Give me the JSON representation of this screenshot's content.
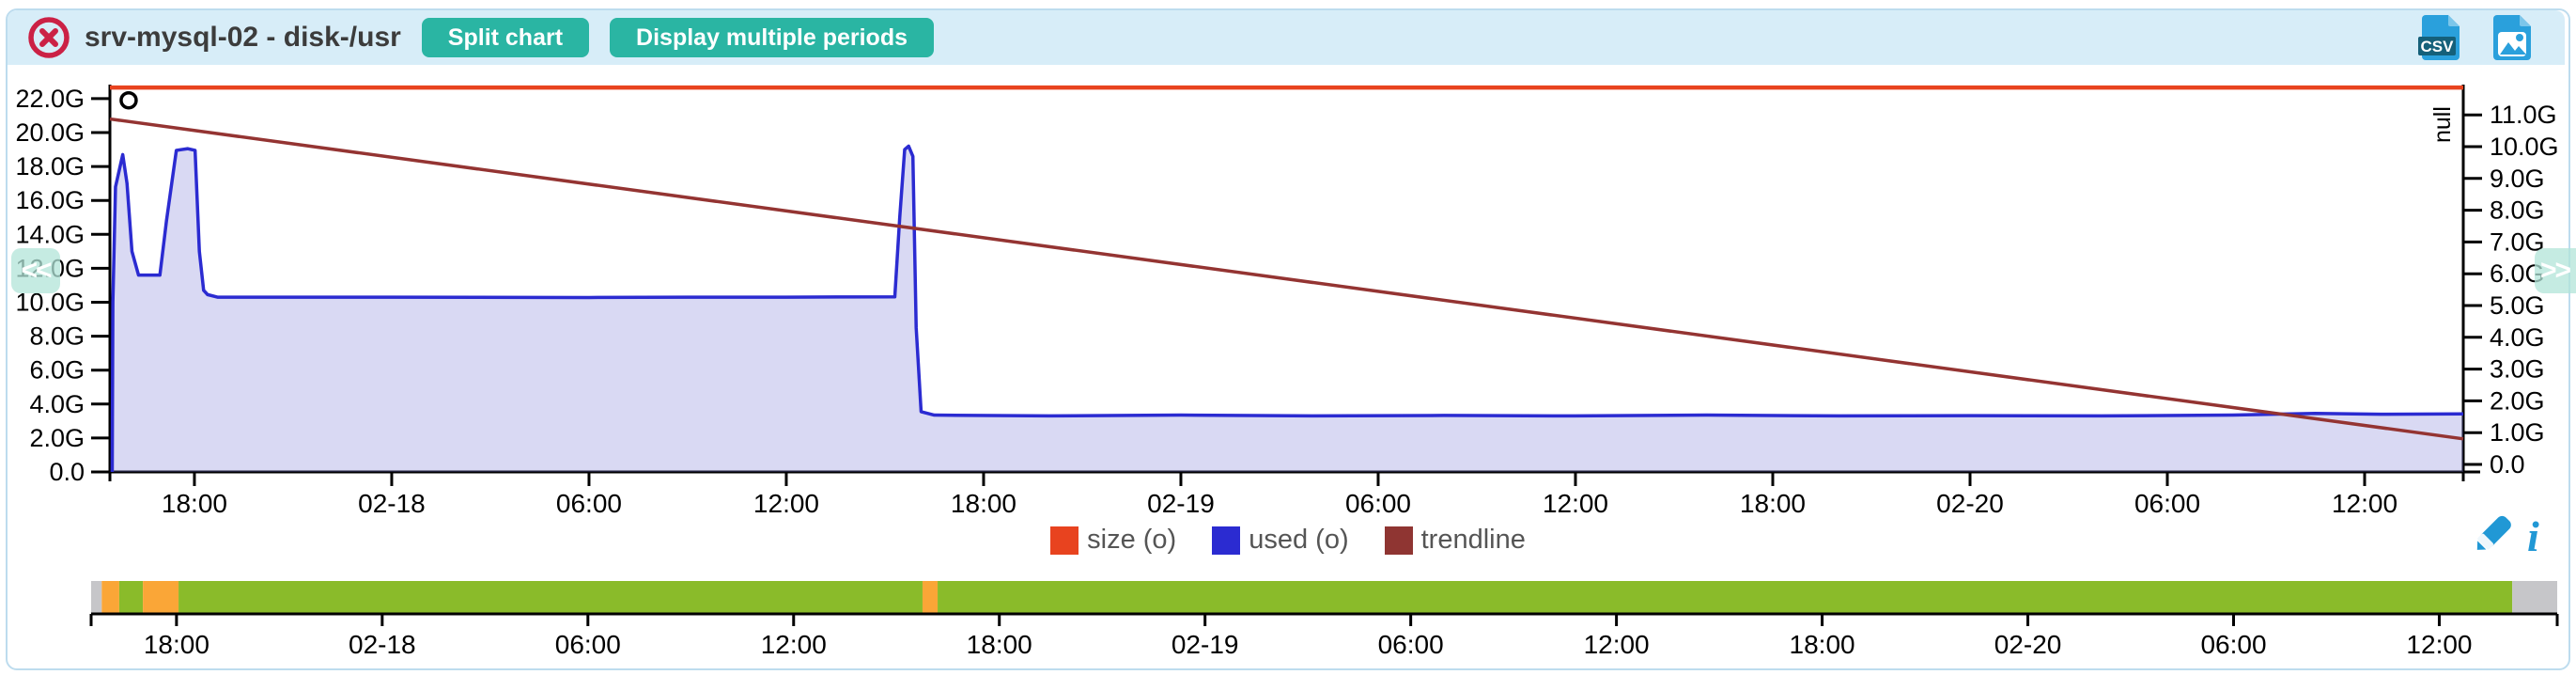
{
  "header": {
    "title": "srv-mysql-02 - disk-/usr",
    "split_button": "Split chart",
    "multi_periods_button": "Display multiple periods",
    "csv_label": "CSV"
  },
  "nav": {
    "prev": "<<",
    "next": ">>"
  },
  "colors": {
    "header_bg": "#d7edf8",
    "panel_border": "#bddcee",
    "accent_teal": "#2ab5a3",
    "close_red": "#cb2145",
    "icon_blue": "#2198d5",
    "axis_black": "#000000"
  },
  "chart_data": {
    "type": "area",
    "title": "srv-mysql-02 - disk-/usr",
    "x_axis": {
      "unit": "hours since 02-17 00:00",
      "range": [
        15.43,
        87
      ],
      "ticks": [
        {
          "t": 18,
          "label": "18:00"
        },
        {
          "t": 24,
          "label": "02-18"
        },
        {
          "t": 30,
          "label": "06:00"
        },
        {
          "t": 36,
          "label": "12:00"
        },
        {
          "t": 42,
          "label": "18:00"
        },
        {
          "t": 48,
          "label": "02-19"
        },
        {
          "t": 54,
          "label": "06:00"
        },
        {
          "t": 60,
          "label": "12:00"
        },
        {
          "t": 66,
          "label": "18:00"
        },
        {
          "t": 72,
          "label": "02-20"
        },
        {
          "t": 78,
          "label": "06:00"
        },
        {
          "t": 84,
          "label": "12:00"
        }
      ]
    },
    "y_left": {
      "tick_values": [
        0,
        2,
        4,
        6,
        8,
        10,
        12,
        14,
        16,
        18,
        20,
        22
      ],
      "tick_labels": [
        "0.0",
        "2.0G",
        "4.0G",
        "6.0G",
        "8.0G",
        "10.0G",
        "12.0G",
        "14.0G",
        "16.0G",
        "18.0G",
        "20.0G",
        "22.0G"
      ],
      "range": [
        0,
        22.9
      ]
    },
    "y_right": {
      "label": "null",
      "tick_values": [
        0,
        1,
        2,
        3,
        4,
        5,
        6,
        7,
        8,
        9,
        10,
        11
      ],
      "tick_labels": [
        "0.0",
        "1.0G",
        "2.0G",
        "3.0G",
        "4.0G",
        "5.0G",
        "6.0G",
        "7.0G",
        "8.0G",
        "9.0G",
        "10.0G",
        "11.0G"
      ],
      "range": [
        0,
        11.9
      ]
    },
    "series": [
      {
        "name": "size (o)",
        "type": "line",
        "color": "#e8431f",
        "width": 4.5,
        "points": [
          [
            15.43,
            22.65
          ],
          [
            87,
            22.65
          ]
        ]
      },
      {
        "name": "used (o)",
        "type": "area",
        "color": "#2b2bd1",
        "fill": "rgba(115,115,212,0.27)",
        "width": 3.5,
        "points": [
          [
            15.5,
            0
          ],
          [
            15.52,
            10
          ],
          [
            15.6,
            16.8
          ],
          [
            15.82,
            18.7
          ],
          [
            15.95,
            17.0
          ],
          [
            16.1,
            13.0
          ],
          [
            16.3,
            11.6
          ],
          [
            16.95,
            11.6
          ],
          [
            17.15,
            14.8
          ],
          [
            17.45,
            18.95
          ],
          [
            17.8,
            19.05
          ],
          [
            18.02,
            18.95
          ],
          [
            18.15,
            13.0
          ],
          [
            18.28,
            10.7
          ],
          [
            18.4,
            10.45
          ],
          [
            18.7,
            10.3
          ],
          [
            24,
            10.3
          ],
          [
            30,
            10.28
          ],
          [
            33,
            10.3
          ],
          [
            36,
            10.3
          ],
          [
            39.3,
            10.32
          ],
          [
            39.45,
            15.0
          ],
          [
            39.6,
            19.0
          ],
          [
            39.72,
            19.2
          ],
          [
            39.85,
            18.6
          ],
          [
            39.95,
            8.5
          ],
          [
            40.1,
            3.55
          ],
          [
            40.5,
            3.35
          ],
          [
            44,
            3.3
          ],
          [
            48,
            3.35
          ],
          [
            52,
            3.3
          ],
          [
            56,
            3.33
          ],
          [
            60,
            3.3
          ],
          [
            64,
            3.35
          ],
          [
            68,
            3.3
          ],
          [
            72,
            3.32
          ],
          [
            76,
            3.3
          ],
          [
            80,
            3.35
          ],
          [
            82.5,
            3.45
          ],
          [
            84.5,
            3.4
          ],
          [
            87,
            3.42
          ]
        ]
      },
      {
        "name": "trendline",
        "type": "line",
        "color": "#943432",
        "width": 3.5,
        "points": [
          [
            15.43,
            20.8
          ],
          [
            87,
            1.95
          ]
        ]
      }
    ],
    "null_marker": {
      "t": 16.0,
      "value_left_scale": 21.9
    }
  },
  "legend": {
    "items": [
      {
        "label": "size (o)",
        "color": "#e8431f"
      },
      {
        "label": "used (o)",
        "color": "#2b2bd1"
      },
      {
        "label": "trendline",
        "color": "#8f3532"
      }
    ]
  },
  "timeline": {
    "range": [
      15.51,
      87.44
    ],
    "status_colors": {
      "green": "#8abb2a",
      "orange": "#faa637",
      "gray": "#c6c6c9"
    },
    "segments": [
      {
        "start": 15.51,
        "end": 15.82,
        "status": "gray"
      },
      {
        "start": 15.82,
        "end": 16.33,
        "status": "orange"
      },
      {
        "start": 16.33,
        "end": 17.02,
        "status": "green"
      },
      {
        "start": 17.02,
        "end": 18.06,
        "status": "orange"
      },
      {
        "start": 18.06,
        "end": 39.76,
        "status": "green"
      },
      {
        "start": 39.76,
        "end": 40.2,
        "status": "orange"
      },
      {
        "start": 40.2,
        "end": 86.13,
        "status": "green"
      },
      {
        "start": 86.13,
        "end": 87.44,
        "status": "gray"
      }
    ],
    "ticks": [
      {
        "t": 18,
        "label": "18:00"
      },
      {
        "t": 24,
        "label": "02-18"
      },
      {
        "t": 30,
        "label": "06:00"
      },
      {
        "t": 36,
        "label": "12:00"
      },
      {
        "t": 42,
        "label": "18:00"
      },
      {
        "t": 48,
        "label": "02-19"
      },
      {
        "t": 54,
        "label": "06:00"
      },
      {
        "t": 60,
        "label": "12:00"
      },
      {
        "t": 66,
        "label": "18:00"
      },
      {
        "t": 72,
        "label": "02-20"
      },
      {
        "t": 78,
        "label": "06:00"
      },
      {
        "t": 84,
        "label": "12:00"
      }
    ]
  }
}
